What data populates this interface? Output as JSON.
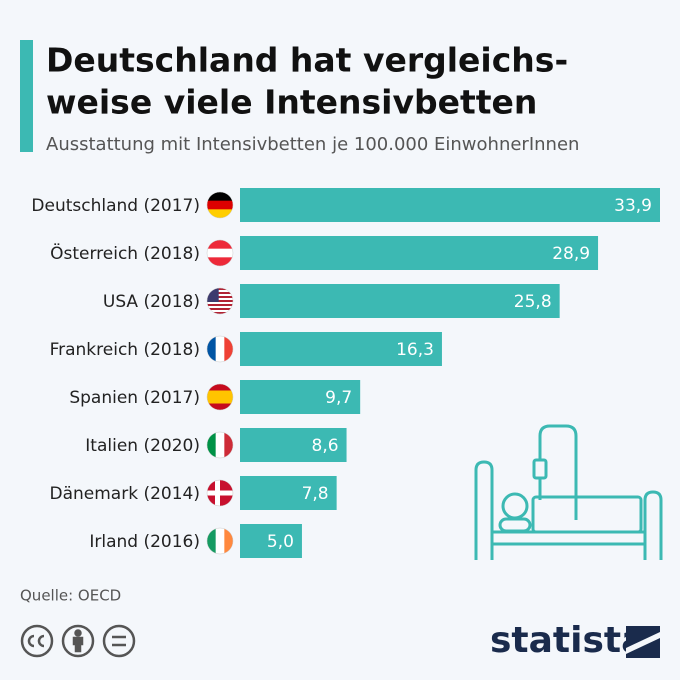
{
  "chart_data": {
    "type": "bar",
    "orientation": "horizontal",
    "title": [
      "Deutschland hat vergleichs-",
      "weise viele Intensivbetten"
    ],
    "subtitle": "Ausstattung mit Intensivbetten je 100.000 EinwohnerInnen",
    "categories": [
      "Deutschland (2017)",
      "Österreich (2018)",
      "USA (2018)",
      "Frankreich (2018)",
      "Spanien (2017)",
      "Italien (2020)",
      "Dänemark (2014)",
      "Irland (2016)"
    ],
    "values": [
      33.9,
      28.9,
      25.8,
      16.3,
      9.7,
      8.6,
      7.8,
      5.0
    ],
    "value_labels": [
      "33,9",
      "28,9",
      "25,8",
      "16,3",
      "9,7",
      "8,6",
      "7,8",
      "5,0"
    ],
    "color": "#3cb9b3",
    "source": "Quelle: OECD"
  },
  "logo": "statista"
}
